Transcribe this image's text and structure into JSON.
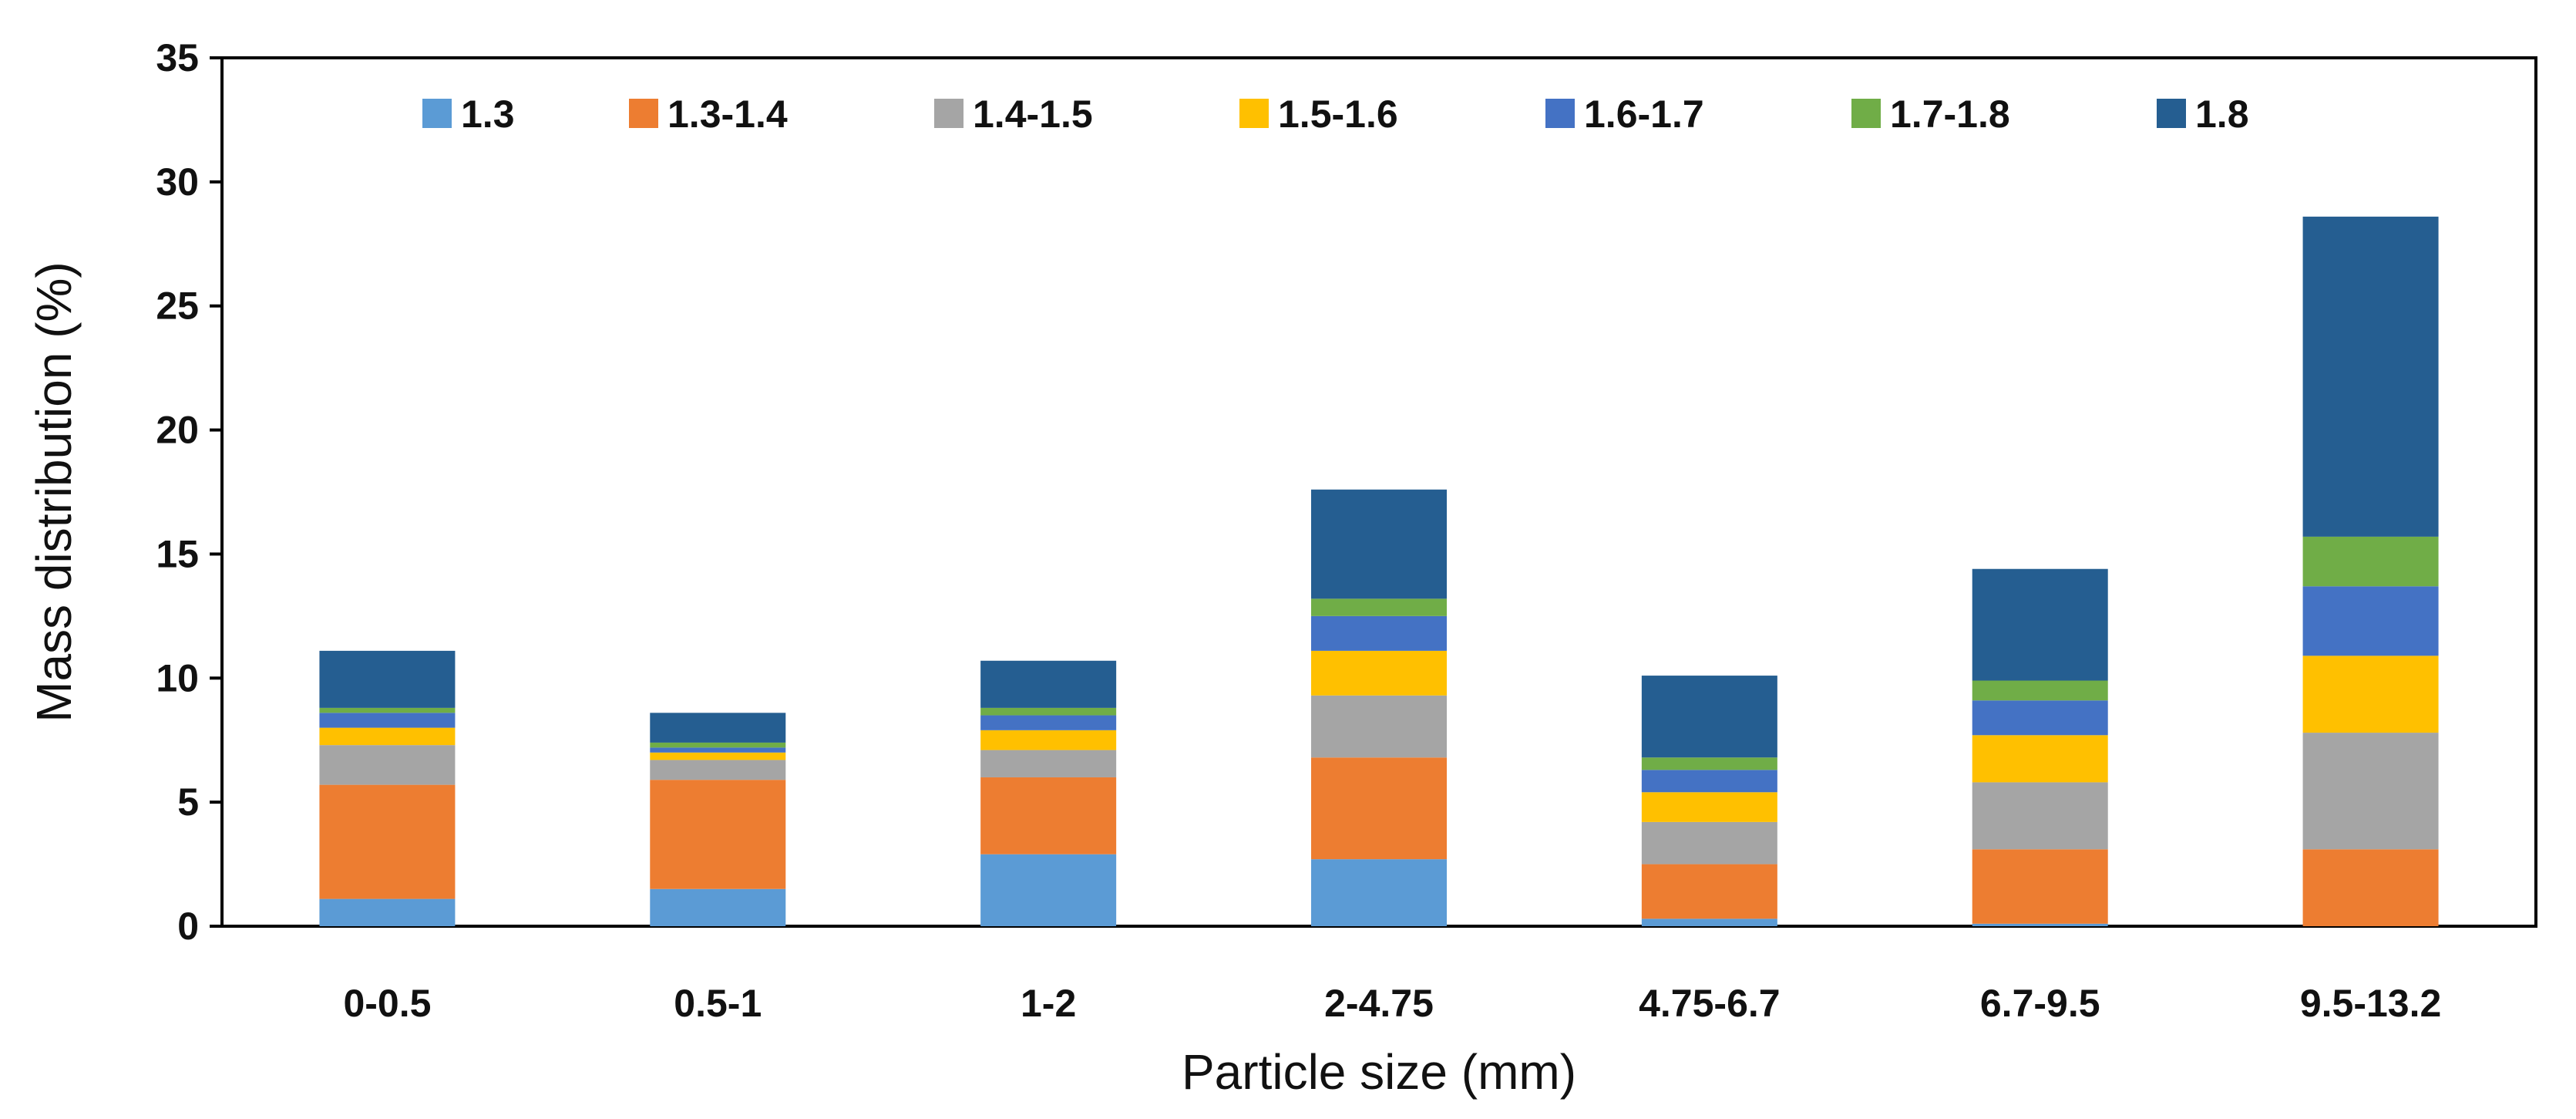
{
  "chart_data": {
    "type": "bar",
    "stacked": true,
    "title": "",
    "xlabel": "Particle size (mm)",
    "ylabel": "Mass distribution (%)",
    "ylim": [
      0,
      35
    ],
    "yticks": [
      0,
      5,
      10,
      15,
      20,
      25,
      30,
      35
    ],
    "grid": false,
    "legend_position": "top",
    "categories": [
      "0-0.5",
      "0.5-1",
      "1-2",
      "2-4.75",
      "4.75-6.7",
      "6.7-9.5",
      "9.5-13.2"
    ],
    "series": [
      {
        "name": "1.3",
        "color": "#5b9bd5",
        "values": [
          1.1,
          1.5,
          2.9,
          2.7,
          0.3,
          0.1,
          0.0
        ]
      },
      {
        "name": "1.3-1.4",
        "color": "#ed7d31",
        "values": [
          4.6,
          4.4,
          3.1,
          4.1,
          2.2,
          3.0,
          3.1
        ]
      },
      {
        "name": "1.4-1.5",
        "color": "#a5a5a5",
        "values": [
          1.6,
          0.8,
          1.1,
          2.5,
          1.7,
          2.7,
          4.7
        ]
      },
      {
        "name": "1.5-1.6",
        "color": "#ffc000",
        "values": [
          0.7,
          0.3,
          0.8,
          1.8,
          1.2,
          1.9,
          3.1
        ]
      },
      {
        "name": "1.6-1.7",
        "color": "#4472c4",
        "values": [
          0.6,
          0.2,
          0.6,
          1.4,
          0.9,
          1.4,
          2.8
        ]
      },
      {
        "name": "1.7-1.8",
        "color": "#70ad47",
        "values": [
          0.2,
          0.2,
          0.3,
          0.7,
          0.5,
          0.8,
          2.0
        ]
      },
      {
        "name": "1.8",
        "color": "#255e91",
        "values": [
          2.3,
          1.2,
          1.9,
          4.4,
          3.3,
          4.5,
          12.9
        ]
      }
    ]
  }
}
